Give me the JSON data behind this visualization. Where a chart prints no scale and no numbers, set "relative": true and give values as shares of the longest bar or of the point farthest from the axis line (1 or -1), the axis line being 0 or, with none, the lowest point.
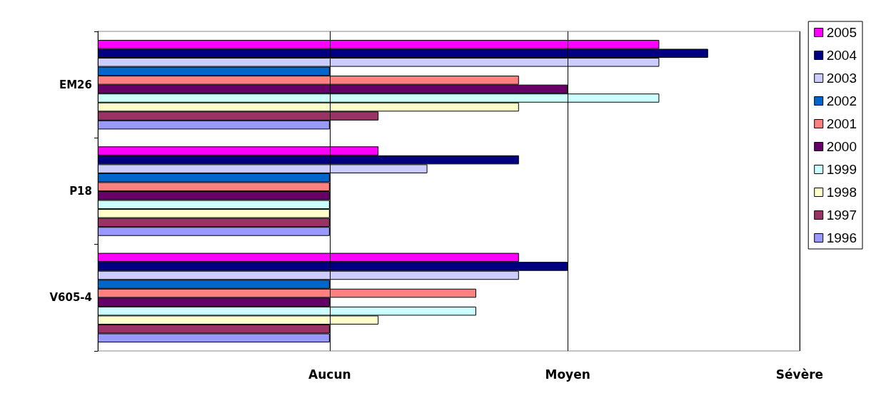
{
  "chart_data": {
    "type": "bar",
    "orientation": "horizontal",
    "relative": true,
    "categories": [
      "EM26",
      "P18",
      "V605-4"
    ],
    "series": [
      {
        "name": "2005",
        "color": "#ff00ff",
        "values": [
          0.92,
          0.46,
          0.69
        ]
      },
      {
        "name": "2004",
        "color": "#000080",
        "values": [
          1,
          0.69,
          0.77
        ]
      },
      {
        "name": "2003",
        "color": "#ccccff",
        "values": [
          0.92,
          0.54,
          0.69
        ]
      },
      {
        "name": "2002",
        "color": "#0066cc",
        "values": [
          0.38,
          0.38,
          0.38
        ]
      },
      {
        "name": "2001",
        "color": "#ff8080",
        "values": [
          0.69,
          0.38,
          0.62
        ]
      },
      {
        "name": "2000",
        "color": "#660066",
        "values": [
          0.77,
          0.38,
          0.38
        ]
      },
      {
        "name": "1999",
        "color": "#ccffff",
        "values": [
          0.92,
          0.38,
          0.62
        ]
      },
      {
        "name": "1998",
        "color": "#ffffcc",
        "values": [
          0.69,
          0.38,
          0.46
        ]
      },
      {
        "name": "1997",
        "color": "#993366",
        "values": [
          0.46,
          0.38,
          0.38
        ]
      },
      {
        "name": "1996",
        "color": "#9999ff",
        "values": [
          0.38,
          0.38,
          0.38
        ]
      }
    ],
    "ref_lines": [
      {
        "axis": "x",
        "value": 0.38,
        "label": "Aucun",
        "color": "#000000"
      },
      {
        "axis": "x",
        "value": 0.77,
        "label": "Moyen",
        "color": "#000000"
      },
      {
        "axis": "x",
        "value": 1.15,
        "label": "Sévère",
        "color": "#000000"
      }
    ],
    "legend": "right"
  }
}
